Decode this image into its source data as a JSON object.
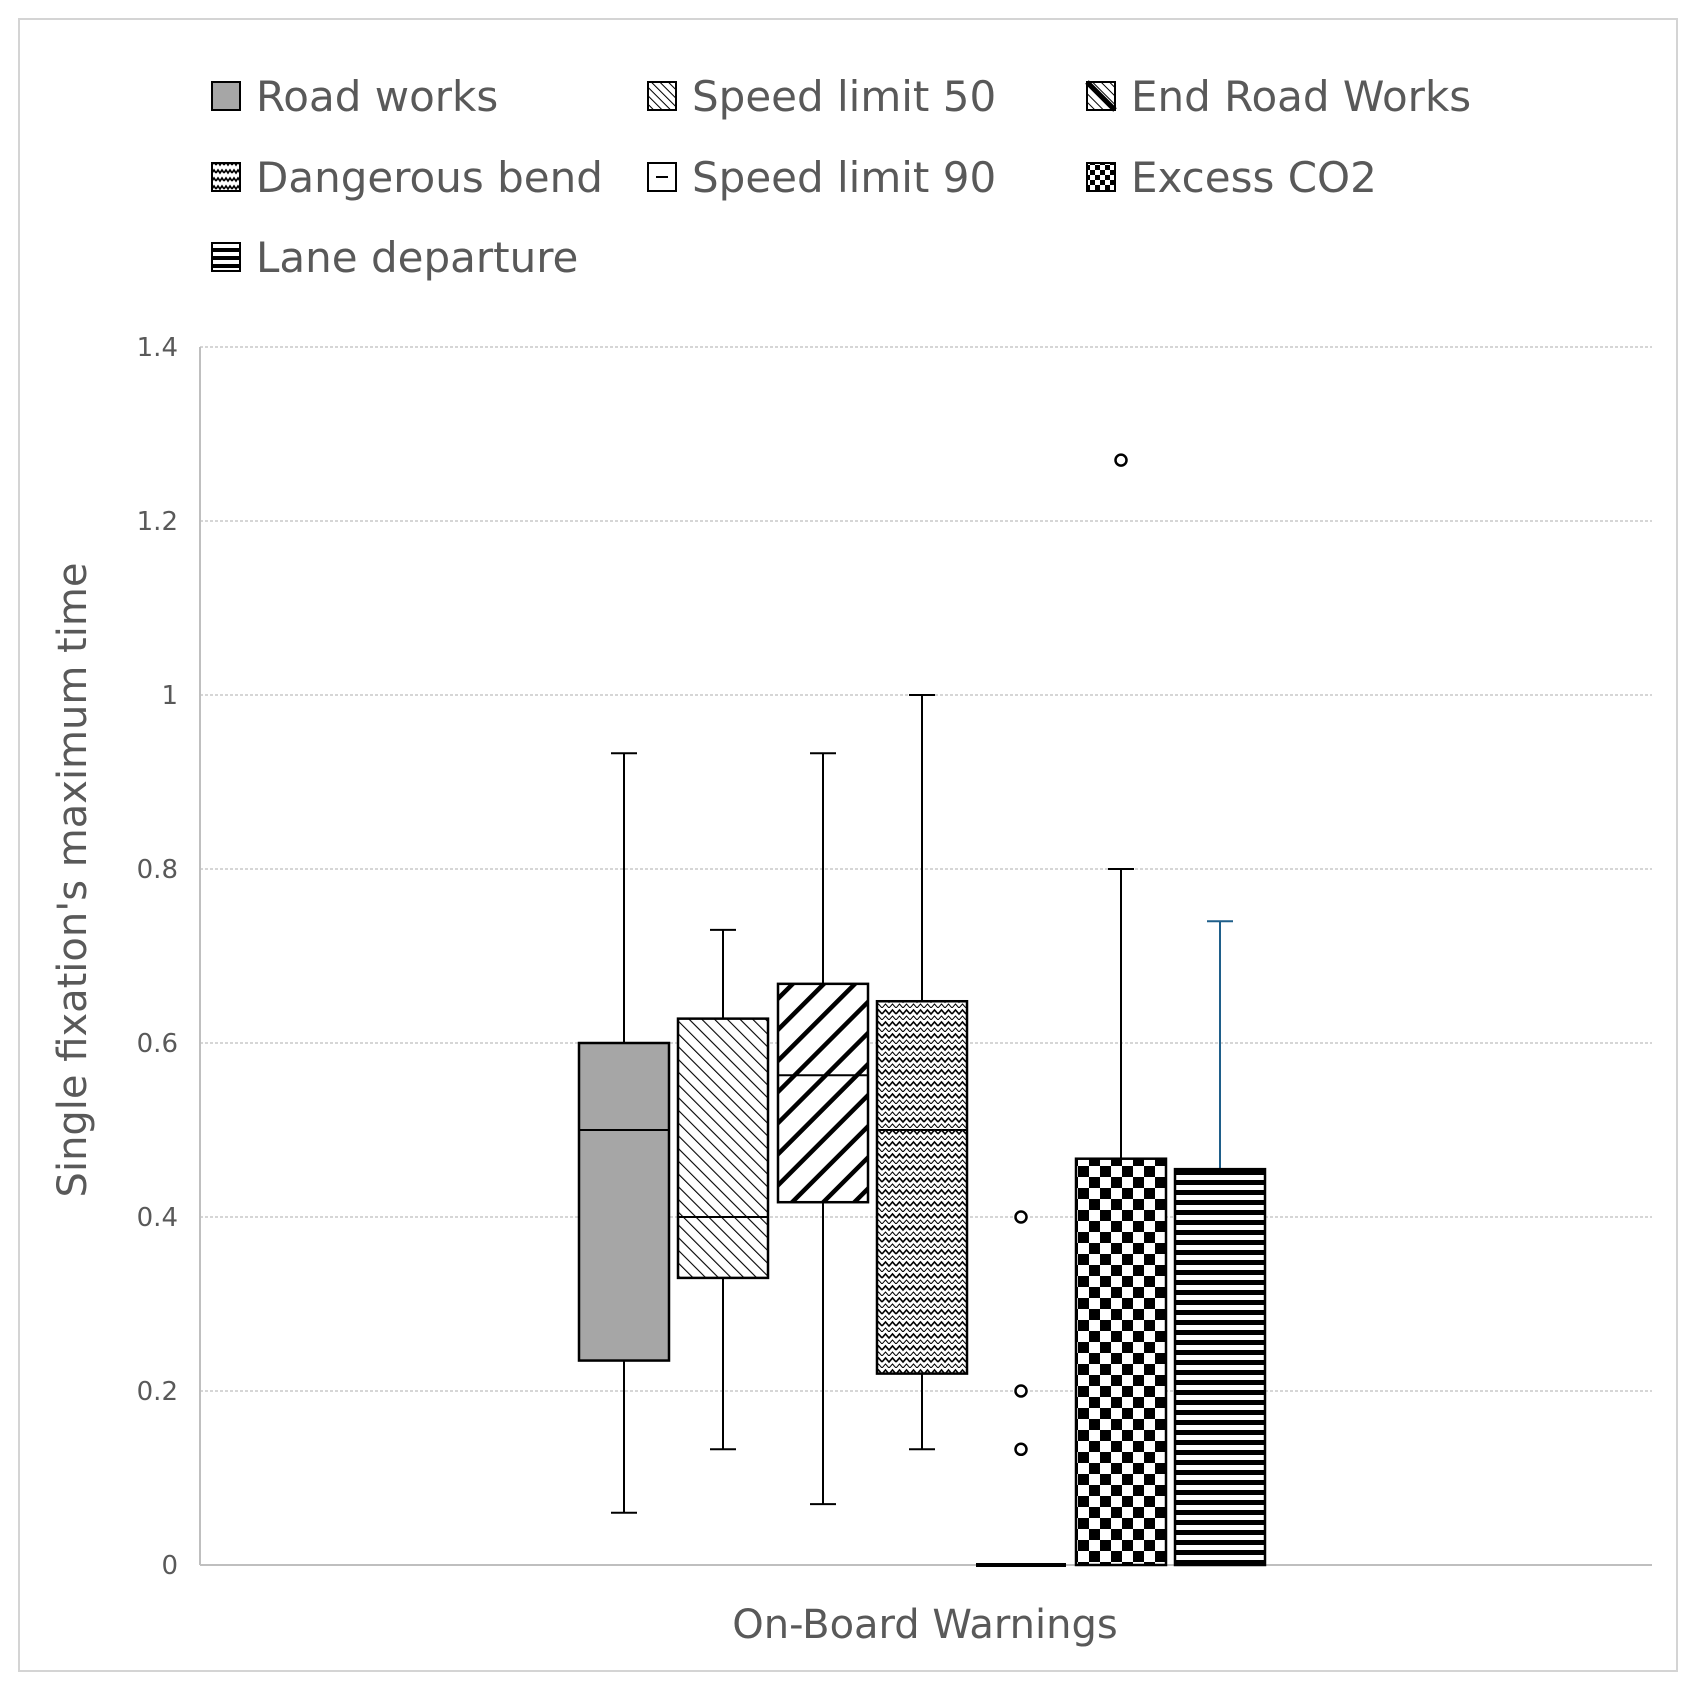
{
  "chart_data": {
    "type": "boxplot",
    "title": "",
    "xlabel": "On-Board Warnings",
    "ylabel": "Single fixation's maximum time",
    "ylim": [
      0,
      1.4
    ],
    "yticks": [
      "0",
      "0.2",
      "0.4",
      "0.6",
      "0.8",
      "1",
      "1.2",
      "1.4"
    ],
    "ytick_values": [
      0,
      0.2,
      0.4,
      0.6,
      0.8,
      1.0,
      1.2,
      1.4
    ],
    "grid": true,
    "legend_position": "top",
    "series": [
      {
        "name": "Road works",
        "pattern": "solid-gray",
        "min": 0.06,
        "q1": 0.235,
        "median": 0.5,
        "q3": 0.6,
        "max": 0.933,
        "outliers": []
      },
      {
        "name": "Speed limit 50",
        "pattern": "diagonal-fine",
        "min": 0.133,
        "q1": 0.33,
        "median": 0.4,
        "q3": 0.628,
        "max": 0.73,
        "outliers": []
      },
      {
        "name": "End Road Works",
        "pattern": "diagonal-wide",
        "min": 0.07,
        "q1": 0.417,
        "median": 0.563,
        "q3": 0.668,
        "max": 0.933,
        "outliers": []
      },
      {
        "name": "Dangerous bend",
        "pattern": "zigzag",
        "min": 0.133,
        "q1": 0.22,
        "median": 0.5,
        "q3": 0.648,
        "max": 1.0,
        "outliers": []
      },
      {
        "name": "Speed limit 90",
        "pattern": "dashes",
        "min": 0,
        "q1": 0,
        "median": 0,
        "q3": 0,
        "max": 0,
        "outliers": [
          0.4,
          0.2,
          0.133
        ]
      },
      {
        "name": "Excess CO2",
        "pattern": "checker",
        "min": 0,
        "q1": 0,
        "median": 0,
        "q3": 0.467,
        "max": 0.8,
        "outliers": [
          1.27
        ]
      },
      {
        "name": "Lane departure",
        "pattern": "horizontal",
        "min": 0,
        "q1": 0,
        "median": 0.2,
        "q3": 0.455,
        "max": 0.74,
        "outliers": []
      }
    ]
  },
  "colors": {
    "gray_fill": "#a6a6a6",
    "grid": "#c8c8c8",
    "axis": "#bfbfbf",
    "text": "#595959",
    "lane_whisker": "#1f5f8a"
  }
}
